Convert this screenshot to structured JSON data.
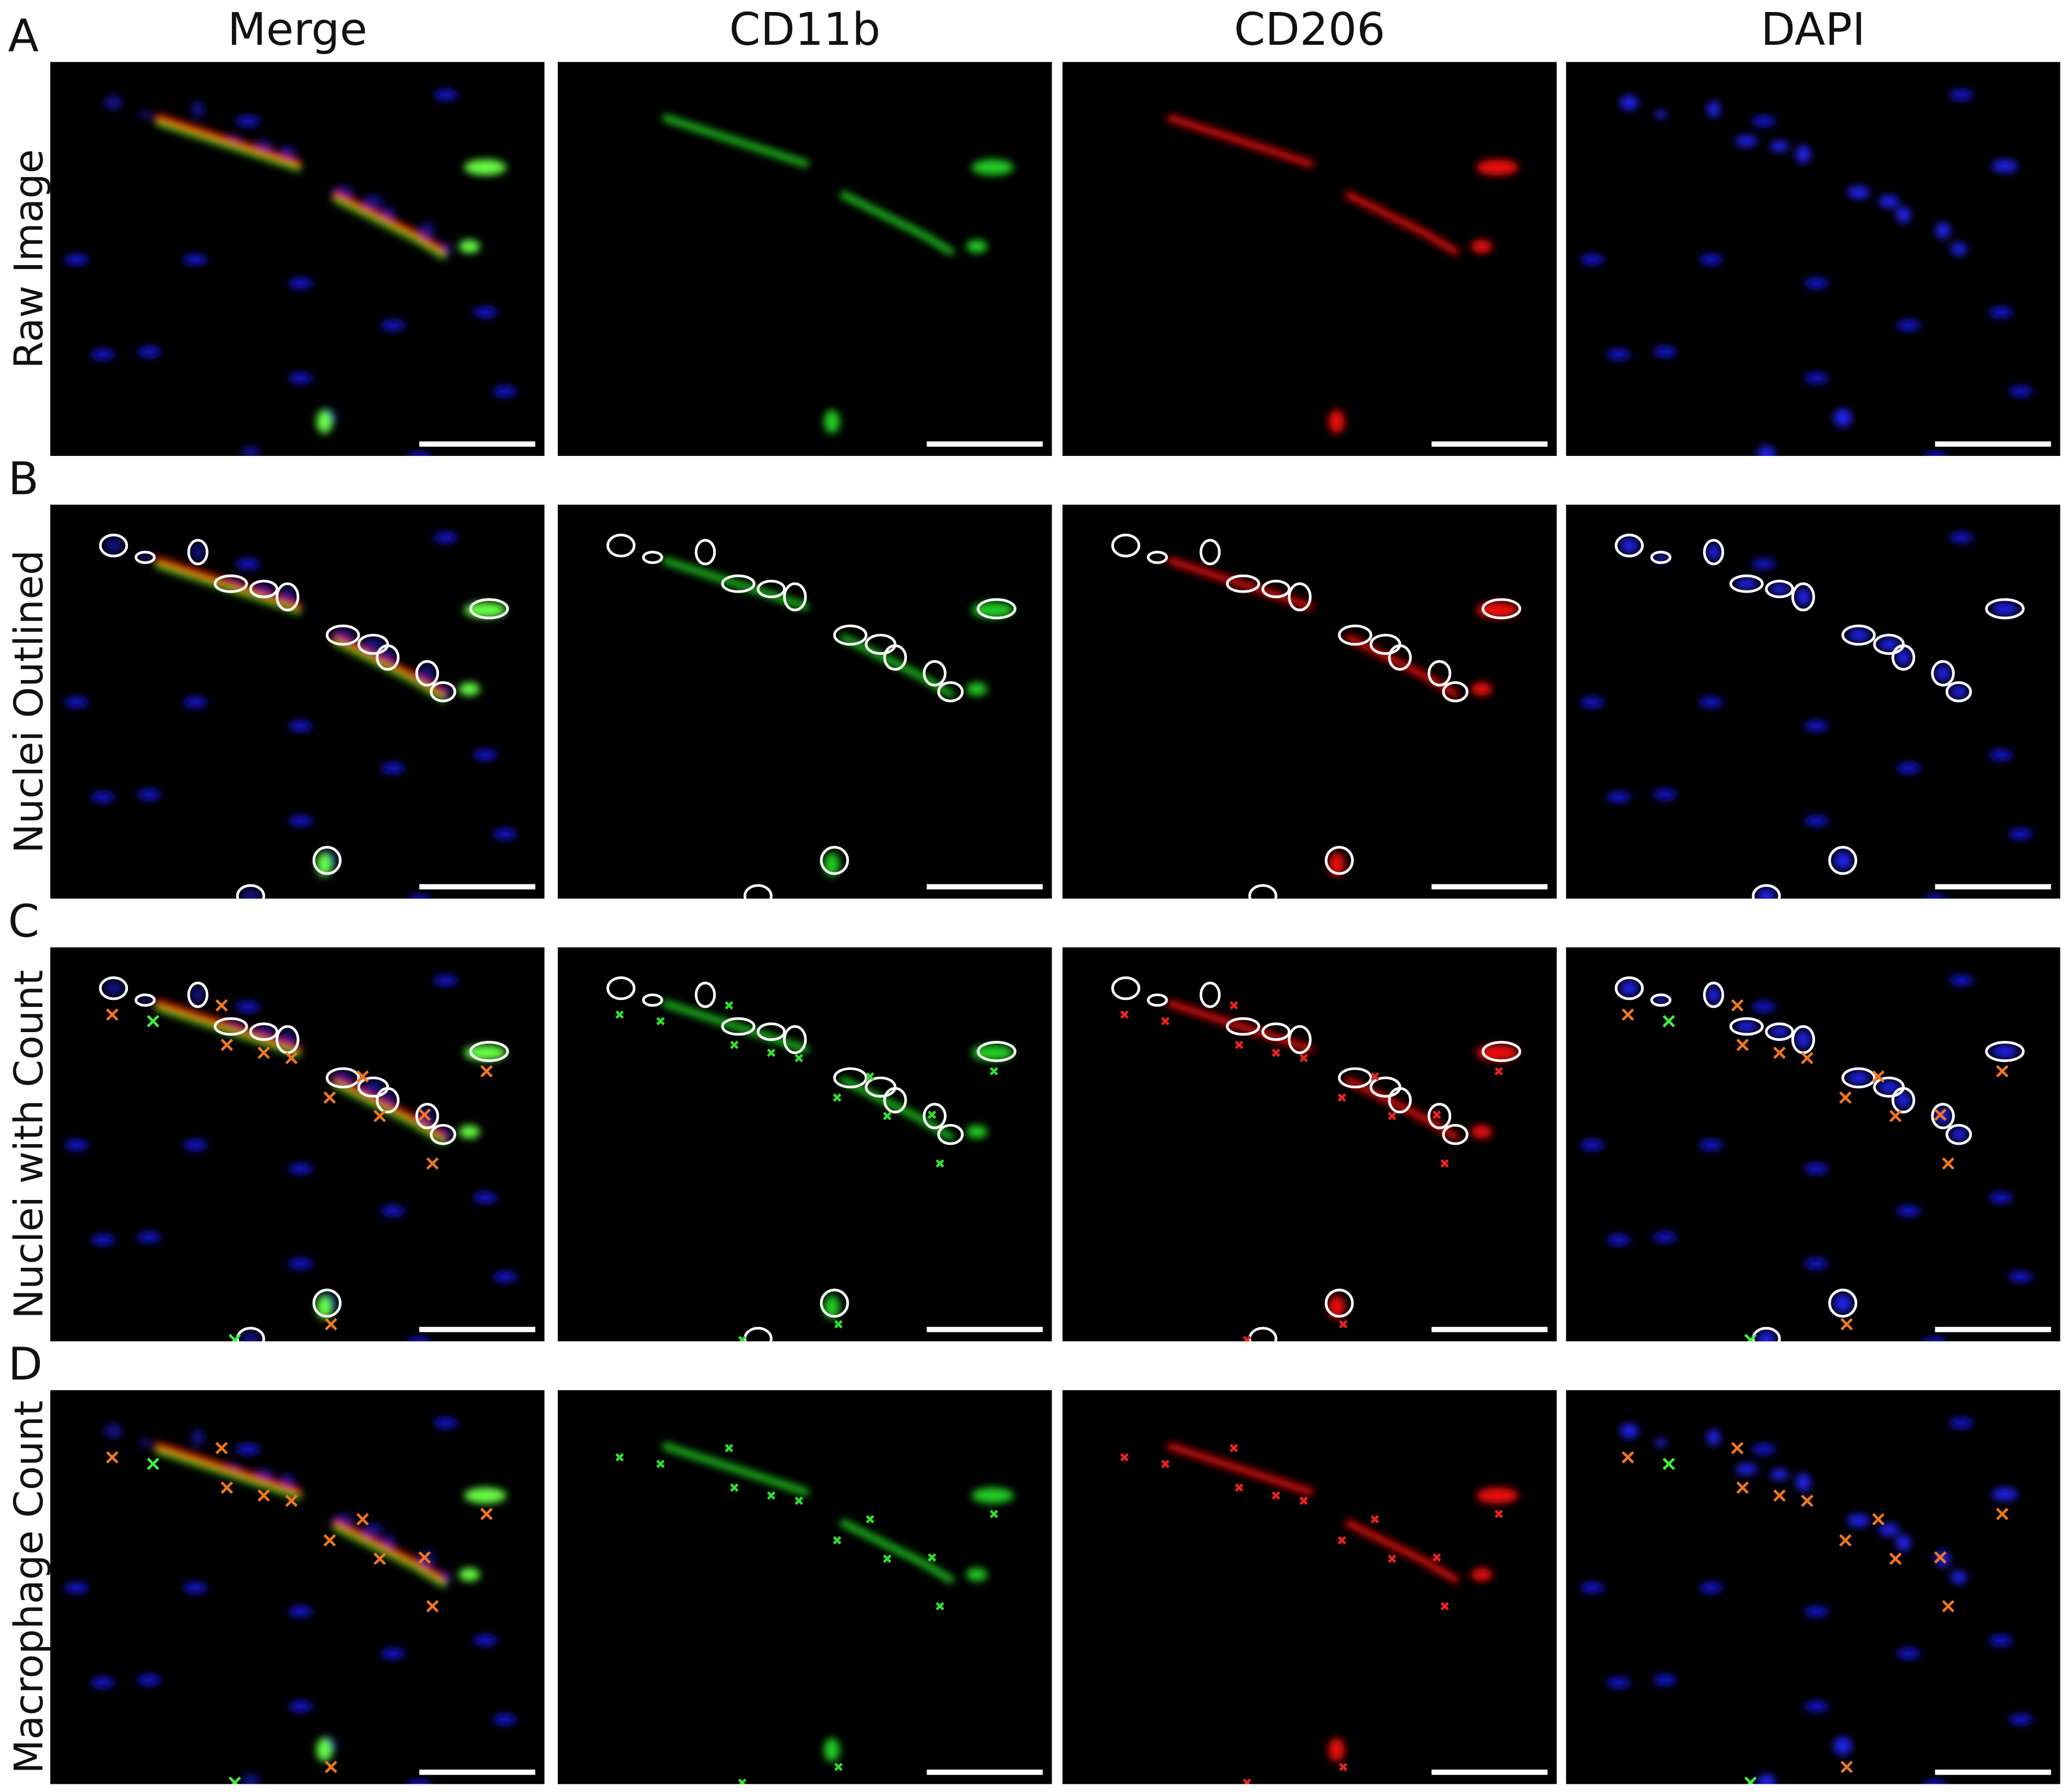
{
  "columns": [
    "Merge",
    "CD11b",
    "CD206",
    "DAPI"
  ],
  "rows": [
    {
      "letter": "A",
      "label": "Raw Image"
    },
    {
      "letter": "B",
      "label": "Nuclei Outlined"
    },
    {
      "letter": "C",
      "label": "Nuclei with Count"
    },
    {
      "letter": "D",
      "label": "Macrophage Count"
    }
  ]
}
